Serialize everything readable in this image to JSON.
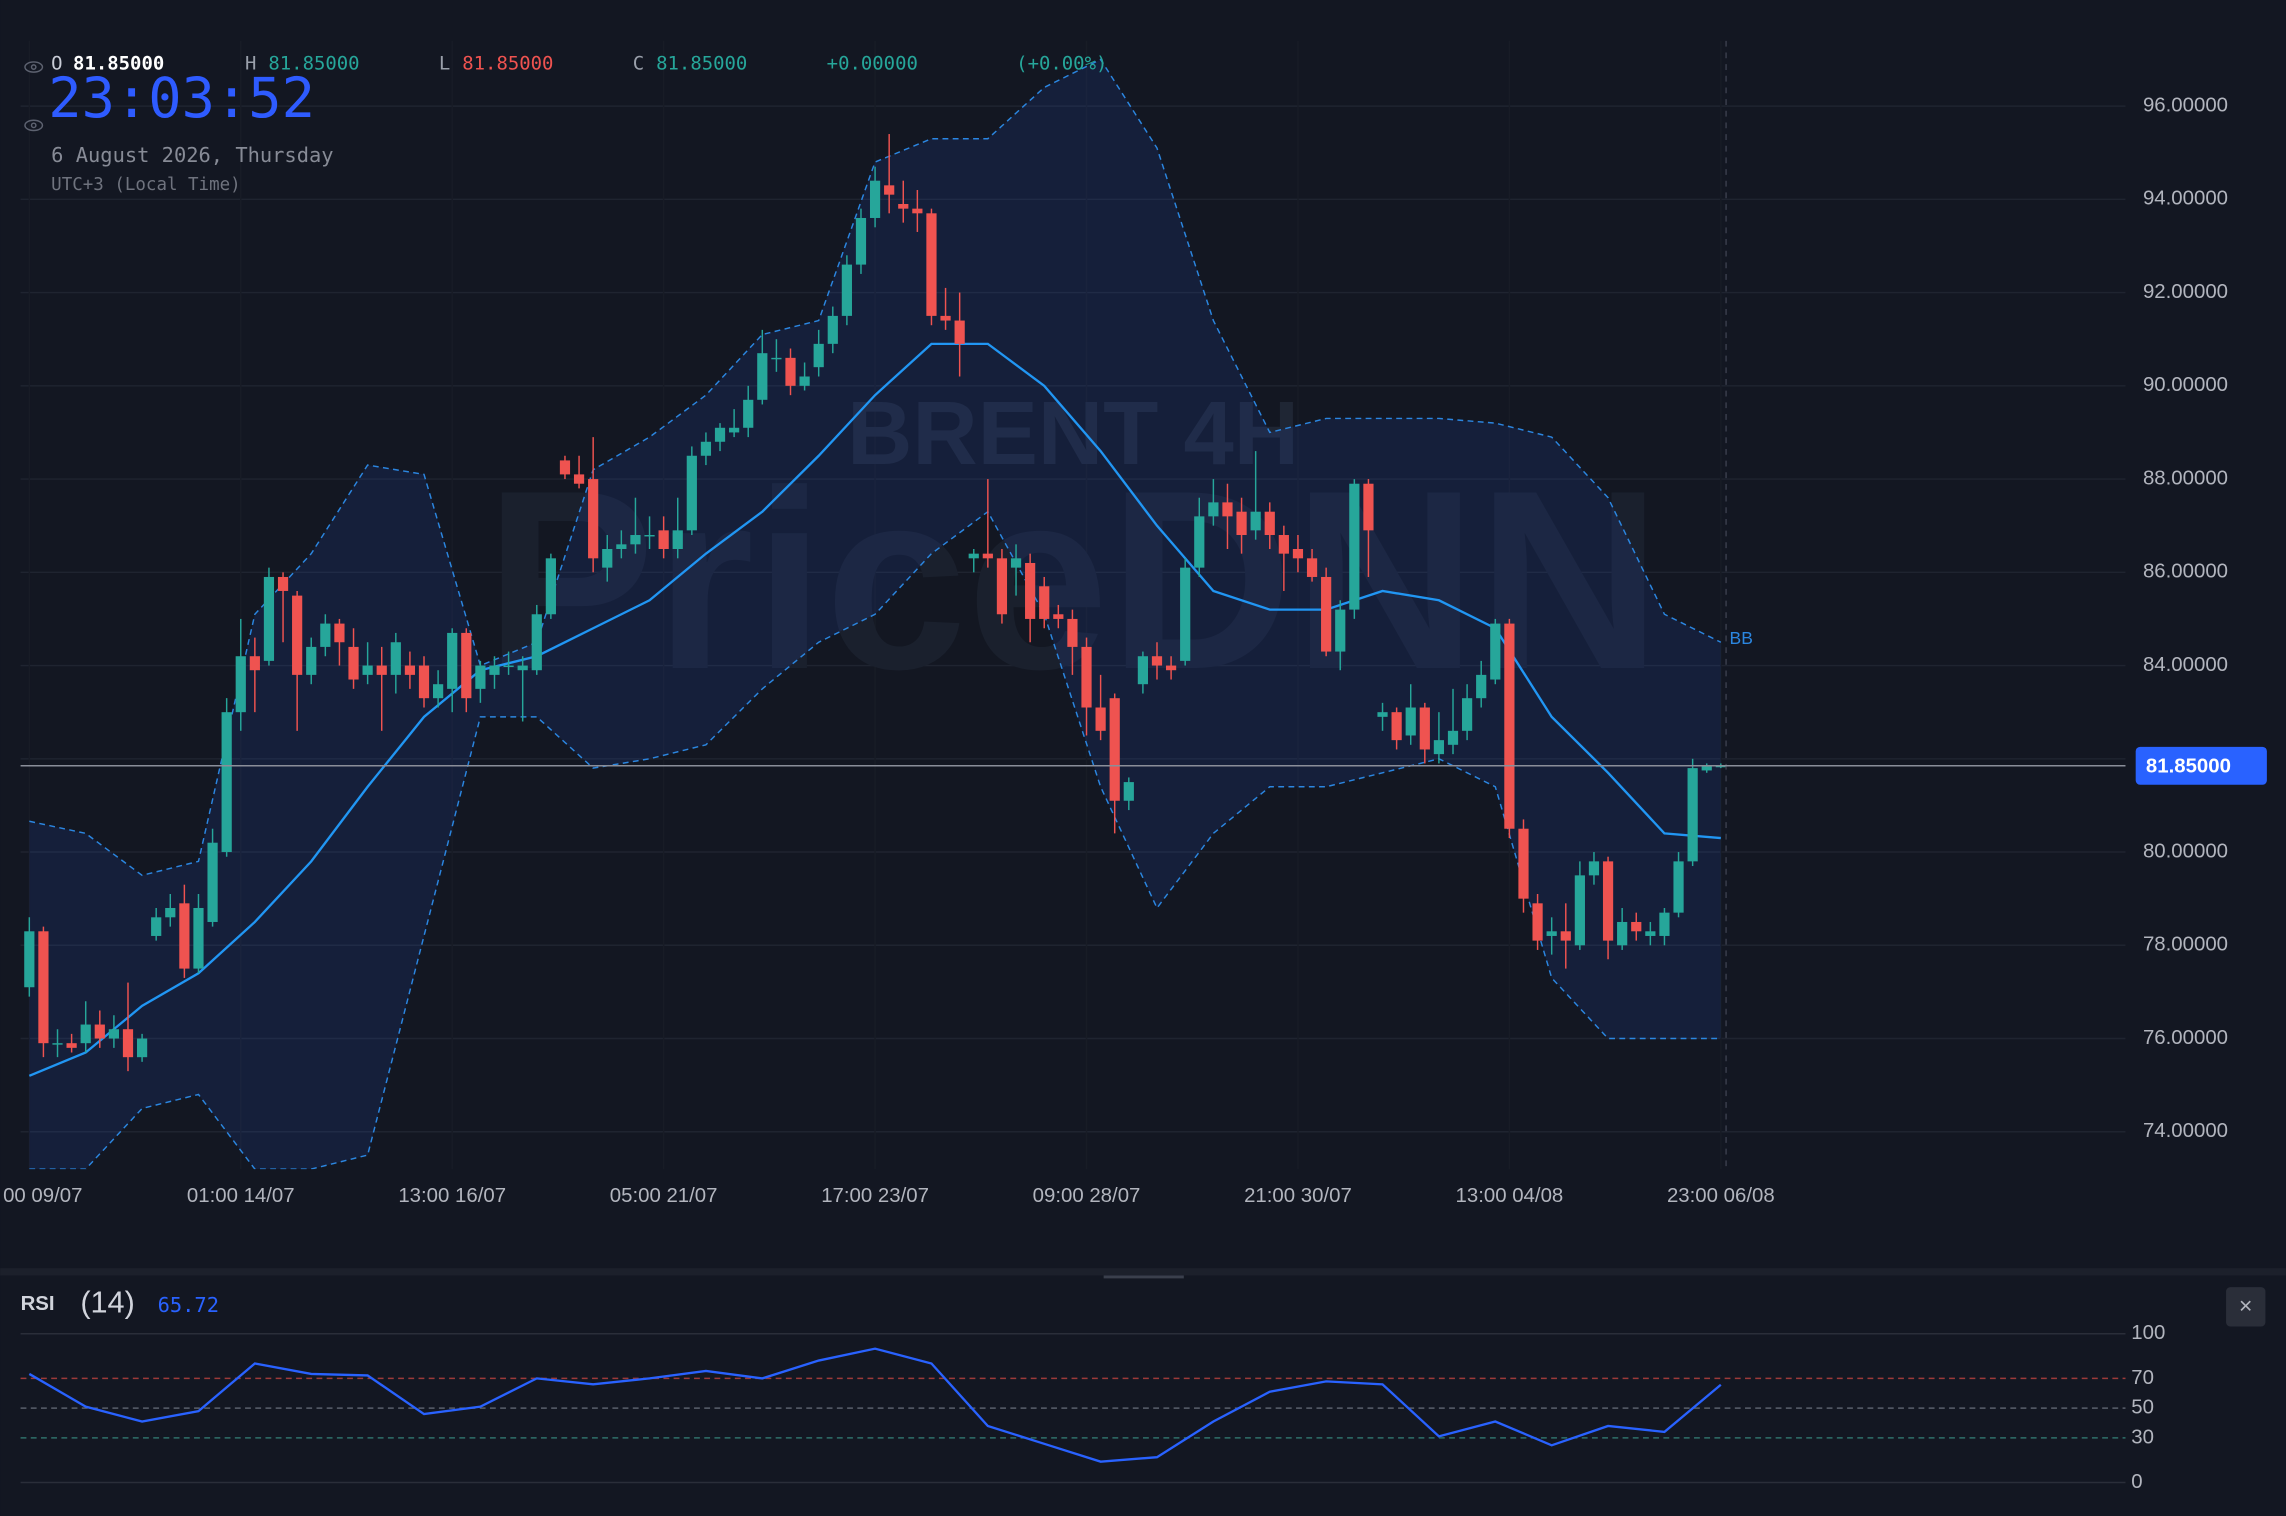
{
  "header": {
    "o_key": "O",
    "o": "81.85000",
    "h_key": "H",
    "h": "81.85000",
    "l_key": "L",
    "l": "81.85000",
    "c_key": "C",
    "c": "81.85000",
    "change": "+0.00000",
    "change_pct": "(+0.00%)",
    "clock": "23:03:52",
    "date": "6 August 2026, Thursday",
    "timezone": "UTC+3 (Local Time)",
    "watermark_top": "BRENT 4H",
    "watermark": "PriceDNN",
    "close_button": "×"
  },
  "chart_data": [
    {
      "type": "candlestick",
      "up_color": "#26a69a",
      "down_color": "#ef5350",
      "ylim": [
        73.2,
        97.4
      ],
      "yticks": [
        {
          "value": 74,
          "label": "74.00000"
        },
        {
          "value": 76,
          "label": "76.00000"
        },
        {
          "value": 78,
          "label": "78.00000"
        },
        {
          "value": 80,
          "label": "80.00000"
        },
        {
          "value": 82,
          "label": "82.00000"
        },
        {
          "value": 84,
          "label": "84.00000"
        },
        {
          "value": 86,
          "label": "86.00000"
        },
        {
          "value": 88,
          "label": "88.00000"
        },
        {
          "value": 90,
          "label": "90.00000"
        },
        {
          "value": 92,
          "label": "92.00000"
        },
        {
          "value": 94,
          "label": "94.00000"
        },
        {
          "value": 96,
          "label": "96.00000"
        }
      ],
      "xticks": [
        {
          "value": 0,
          "label": "00 09/07"
        },
        {
          "value": 15,
          "label": "01:00 14/07"
        },
        {
          "value": 30,
          "label": "13:00 16/07"
        },
        {
          "value": 45,
          "label": "05:00 21/07"
        },
        {
          "value": 60,
          "label": "17:00 23/07"
        },
        {
          "value": 75,
          "label": "09:00 28/07"
        },
        {
          "value": 90,
          "label": "21:00 30/07"
        },
        {
          "value": 105,
          "label": "13:00 04/08"
        },
        {
          "value": 120,
          "label": "23:00 06/08"
        }
      ],
      "grid": true,
      "last_price": {
        "value": 81.85,
        "label": "81.85000"
      },
      "ohlc": [
        [
          77.1,
          78.6,
          76.9,
          78.3
        ],
        [
          78.3,
          78.4,
          75.6,
          75.9
        ],
        [
          75.9,
          76.2,
          75.6,
          75.9
        ],
        [
          75.9,
          76.1,
          75.7,
          75.8
        ],
        [
          75.9,
          76.8,
          75.7,
          76.3
        ],
        [
          76.3,
          76.6,
          75.8,
          76.0
        ],
        [
          76.0,
          76.5,
          75.8,
          76.2
        ],
        [
          76.2,
          77.2,
          75.3,
          75.6
        ],
        [
          75.6,
          76.1,
          75.5,
          76.0
        ],
        [
          78.2,
          78.8,
          78.1,
          78.6
        ],
        [
          78.6,
          79.1,
          78.4,
          78.8
        ],
        [
          78.9,
          79.3,
          77.3,
          77.5
        ],
        [
          77.5,
          79.1,
          77.4,
          78.8
        ],
        [
          78.5,
          80.5,
          78.4,
          80.2
        ],
        [
          80.0,
          83.3,
          79.9,
          83.0
        ],
        [
          83.0,
          85.0,
          82.6,
          84.2
        ],
        [
          84.2,
          84.6,
          83.0,
          83.9
        ],
        [
          84.1,
          86.1,
          84.0,
          85.9
        ],
        [
          85.9,
          86.0,
          84.5,
          85.6
        ],
        [
          85.5,
          85.6,
          82.6,
          83.8
        ],
        [
          83.8,
          84.6,
          83.6,
          84.4
        ],
        [
          84.4,
          85.1,
          84.2,
          84.9
        ],
        [
          84.9,
          85.0,
          84.0,
          84.5
        ],
        [
          84.4,
          84.8,
          83.5,
          83.7
        ],
        [
          83.8,
          84.5,
          83.6,
          84.0
        ],
        [
          84.0,
          84.4,
          82.6,
          83.8
        ],
        [
          83.8,
          84.7,
          83.4,
          84.5
        ],
        [
          84.0,
          84.3,
          83.5,
          83.8
        ],
        [
          84.0,
          84.2,
          83.1,
          83.3
        ],
        [
          83.3,
          83.9,
          83.1,
          83.6
        ],
        [
          83.5,
          84.8,
          83.0,
          84.7
        ],
        [
          84.7,
          84.8,
          83.0,
          83.3
        ],
        [
          83.5,
          84.1,
          83.2,
          84.0
        ],
        [
          83.8,
          84.2,
          83.5,
          84.0
        ],
        [
          84.0,
          84.3,
          83.8,
          84.0
        ],
        [
          83.9,
          84.2,
          82.8,
          84.0
        ],
        [
          83.9,
          85.3,
          83.8,
          85.1
        ],
        [
          85.1,
          86.4,
          85.0,
          86.3
        ],
        [
          88.4,
          88.5,
          88.0,
          88.1
        ],
        [
          88.1,
          88.5,
          87.8,
          87.9
        ],
        [
          88.0,
          88.9,
          86.0,
          86.3
        ],
        [
          86.1,
          86.8,
          85.8,
          86.5
        ],
        [
          86.5,
          86.9,
          86.3,
          86.6
        ],
        [
          86.6,
          87.6,
          86.4,
          86.8
        ],
        [
          86.8,
          87.2,
          86.5,
          86.8
        ],
        [
          86.9,
          87.2,
          86.3,
          86.5
        ],
        [
          86.5,
          87.6,
          86.3,
          86.9
        ],
        [
          86.9,
          88.7,
          86.8,
          88.5
        ],
        [
          88.5,
          89.0,
          88.3,
          88.8
        ],
        [
          88.8,
          89.2,
          88.6,
          89.1
        ],
        [
          89.0,
          89.5,
          88.9,
          89.1
        ],
        [
          89.1,
          90.0,
          88.9,
          89.7
        ],
        [
          89.7,
          91.2,
          89.6,
          90.7
        ],
        [
          90.6,
          91.0,
          90.3,
          90.6
        ],
        [
          90.6,
          90.8,
          89.8,
          90.0
        ],
        [
          90.0,
          90.5,
          89.9,
          90.2
        ],
        [
          90.4,
          91.2,
          90.2,
          90.9
        ],
        [
          90.9,
          91.7,
          90.7,
          91.5
        ],
        [
          91.5,
          92.8,
          91.3,
          92.6
        ],
        [
          92.6,
          93.8,
          92.4,
          93.6
        ],
        [
          93.6,
          94.7,
          93.4,
          94.4
        ],
        [
          94.3,
          95.4,
          93.7,
          94.1
        ],
        [
          93.9,
          94.4,
          93.5,
          93.8
        ],
        [
          93.8,
          94.2,
          93.3,
          93.7
        ],
        [
          93.7,
          93.8,
          91.3,
          91.5
        ],
        [
          91.5,
          92.1,
          91.2,
          91.4
        ],
        [
          91.4,
          92.0,
          90.2,
          90.9
        ],
        [
          86.3,
          86.5,
          86.0,
          86.4
        ],
        [
          86.4,
          88.0,
          86.1,
          86.3
        ],
        [
          86.3,
          86.5,
          84.9,
          85.1
        ],
        [
          86.1,
          86.6,
          85.5,
          86.3
        ],
        [
          86.2,
          86.4,
          84.5,
          85.0
        ],
        [
          85.7,
          85.9,
          84.8,
          85.0
        ],
        [
          85.1,
          85.3,
          84.8,
          85.0
        ],
        [
          85.0,
          85.2,
          83.8,
          84.4
        ],
        [
          84.4,
          84.6,
          82.5,
          83.1
        ],
        [
          83.1,
          83.8,
          82.4,
          82.6
        ],
        [
          83.3,
          83.4,
          80.4,
          81.1
        ],
        [
          81.1,
          81.6,
          80.9,
          81.5
        ],
        [
          83.6,
          84.3,
          83.4,
          84.2
        ],
        [
          84.2,
          84.5,
          83.7,
          84.0
        ],
        [
          84.0,
          84.2,
          83.7,
          83.9
        ],
        [
          84.1,
          86.3,
          84.0,
          86.1
        ],
        [
          86.1,
          87.6,
          85.9,
          87.2
        ],
        [
          87.2,
          88.0,
          87.0,
          87.5
        ],
        [
          87.5,
          87.9,
          86.5,
          87.2
        ],
        [
          87.3,
          87.6,
          86.4,
          86.8
        ],
        [
          86.9,
          88.6,
          86.7,
          87.3
        ],
        [
          87.3,
          87.5,
          86.5,
          86.8
        ],
        [
          86.8,
          87.0,
          85.6,
          86.4
        ],
        [
          86.5,
          86.8,
          86.0,
          86.3
        ],
        [
          86.3,
          86.5,
          85.8,
          85.9
        ],
        [
          85.9,
          86.1,
          84.2,
          84.3
        ],
        [
          84.3,
          85.4,
          83.9,
          85.2
        ],
        [
          85.2,
          88.0,
          85.0,
          87.9
        ],
        [
          87.9,
          88.0,
          85.9,
          86.9
        ],
        [
          82.9,
          83.2,
          82.6,
          83.0
        ],
        [
          83.0,
          83.1,
          82.2,
          82.4
        ],
        [
          82.5,
          83.6,
          82.3,
          83.1
        ],
        [
          83.1,
          83.2,
          81.9,
          82.2
        ],
        [
          82.1,
          83.0,
          81.9,
          82.4
        ],
        [
          82.3,
          83.5,
          82.1,
          82.6
        ],
        [
          82.6,
          83.6,
          82.4,
          83.3
        ],
        [
          83.3,
          84.1,
          83.1,
          83.8
        ],
        [
          83.7,
          85.0,
          83.6,
          84.9
        ],
        [
          84.9,
          85.0,
          80.3,
          80.5
        ],
        [
          80.5,
          80.7,
          78.7,
          79.0
        ],
        [
          78.9,
          79.1,
          77.9,
          78.1
        ],
        [
          78.2,
          78.6,
          77.8,
          78.3
        ],
        [
          78.3,
          78.9,
          77.5,
          78.1
        ],
        [
          78.0,
          79.8,
          77.9,
          79.5
        ],
        [
          79.5,
          80.0,
          79.3,
          79.8
        ],
        [
          79.8,
          79.9,
          77.7,
          78.1
        ],
        [
          78.0,
          78.8,
          77.9,
          78.5
        ],
        [
          78.5,
          78.7,
          78.1,
          78.3
        ],
        [
          78.2,
          78.5,
          78.0,
          78.3
        ],
        [
          78.2,
          78.8,
          78.0,
          78.7
        ],
        [
          78.7,
          80.0,
          78.6,
          79.8
        ],
        [
          79.8,
          82.0,
          79.7,
          81.8
        ],
        [
          81.75,
          81.9,
          81.7,
          81.85
        ],
        [
          81.85,
          81.9,
          81.8,
          81.85
        ]
      ],
      "bands": {
        "name": "BB",
        "color": "#2b86e0",
        "x": [
          0,
          4,
          8,
          12,
          16,
          20,
          24,
          28,
          32,
          36,
          40,
          44,
          48,
          52,
          56,
          60,
          64,
          68,
          72,
          76,
          80,
          84,
          88,
          92,
          96,
          100,
          104,
          108,
          112,
          116,
          120
        ],
        "upper": [
          80.66,
          80.4,
          79.5,
          79.8,
          85.1,
          86.4,
          88.3,
          88.1,
          84.0,
          84.5,
          88.2,
          88.9,
          89.8,
          91.1,
          91.4,
          94.8,
          95.3,
          95.3,
          96.4,
          97.0,
          95.1,
          91.4,
          89.0,
          89.3,
          89.3,
          89.3,
          89.2,
          88.9,
          87.6,
          85.1,
          84.5
        ],
        "middle": [
          75.2,
          75.7,
          76.7,
          77.4,
          78.5,
          79.8,
          81.4,
          82.9,
          83.9,
          84.2,
          84.8,
          85.4,
          86.4,
          87.3,
          88.5,
          89.8,
          90.9,
          90.9,
          90.0,
          88.6,
          87.0,
          85.6,
          85.2,
          85.2,
          85.6,
          85.4,
          84.8,
          82.9,
          81.7,
          80.4,
          80.3
        ],
        "lower": [
          73.2,
          73.2,
          74.5,
          74.8,
          73.2,
          73.2,
          73.5,
          78.2,
          82.9,
          82.9,
          81.8,
          82.0,
          82.3,
          83.5,
          84.5,
          85.1,
          86.4,
          87.3,
          85.1,
          81.4,
          78.8,
          80.4,
          81.4,
          81.4,
          81.7,
          82.0,
          81.4,
          77.3,
          76.0,
          76.0,
          76.0
        ]
      }
    },
    {
      "type": "line",
      "title": "RSI",
      "subtitle": "(14)",
      "value_label": "65.72",
      "color": "#2962ff",
      "ylim": [
        0,
        100
      ],
      "yticks": [
        0,
        30,
        50,
        70,
        100
      ],
      "x": [
        0,
        4,
        8,
        12,
        16,
        20,
        24,
        28,
        32,
        36,
        40,
        44,
        48,
        52,
        56,
        60,
        64,
        68,
        72,
        76,
        80,
        84,
        88,
        92,
        96,
        100,
        104,
        108,
        112,
        116,
        120
      ],
      "values": [
        73,
        51,
        41,
        48,
        80,
        73,
        72,
        46,
        51,
        70,
        66,
        70,
        75,
        70,
        82,
        90,
        80,
        38,
        26,
        14,
        17,
        41,
        61,
        68,
        66,
        31,
        41,
        25,
        38,
        34,
        65.72
      ]
    }
  ]
}
